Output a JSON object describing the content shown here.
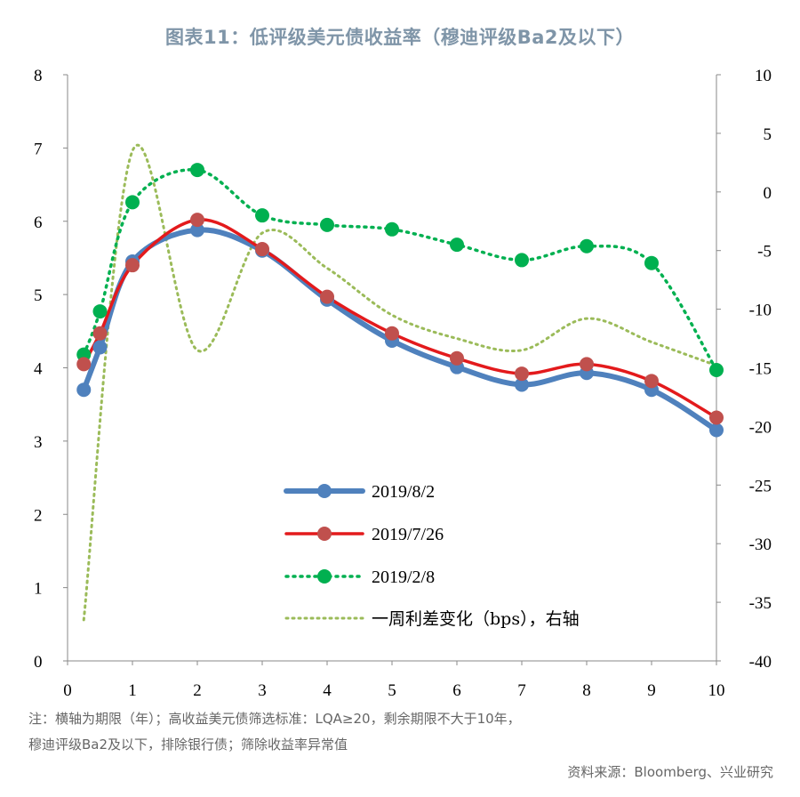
{
  "title": "图表11：低评级美元债收益率（穆迪评级Ba2及以下）",
  "footnote_line1": "注：横轴为期限（年）；高收益美元债筛选标准：LQA≥20，剩余期限不大于10年，",
  "footnote_line2": "穆迪评级Ba2及以下，排除银行债；筛除收益率异常值",
  "source": "资料来源：Bloomberg、兴业研究",
  "chart_data": {
    "type": "line",
    "x_ticks": [
      "0",
      "1",
      "2",
      "3",
      "4",
      "5",
      "6",
      "7",
      "8",
      "9",
      "10"
    ],
    "y_left_ticks": [
      "0",
      "1",
      "2",
      "3",
      "4",
      "5",
      "6",
      "7",
      "8"
    ],
    "y_right_ticks": [
      "-40",
      "-35",
      "-30",
      "-25",
      "-20",
      "-15",
      "-10",
      "-5",
      "0",
      "5",
      "10"
    ],
    "xlim": [
      0,
      10
    ],
    "ylim_left": [
      0,
      8
    ],
    "ylim_right": [
      -40,
      10
    ],
    "grid": false,
    "legend_position": "bottom-center",
    "series": [
      {
        "name": "2019/8/2",
        "axis": "left",
        "style": "solid-thick",
        "color": "#4f81bd",
        "marker_color": "#4f81bd",
        "x": [
          0.25,
          0.5,
          1,
          2,
          3,
          4,
          5,
          6,
          7,
          8,
          9,
          10
        ],
        "y": [
          3.7,
          4.28,
          5.45,
          5.88,
          5.6,
          4.93,
          4.37,
          4.01,
          3.77,
          3.93,
          3.7,
          3.15
        ]
      },
      {
        "name": "2019/7/26",
        "axis": "left",
        "style": "solid",
        "color": "#e31a1c",
        "marker_color": "#c0504d",
        "x": [
          0.25,
          0.5,
          1,
          2,
          3,
          4,
          5,
          6,
          7,
          8,
          9,
          10
        ],
        "y": [
          4.05,
          4.47,
          5.4,
          6.02,
          5.62,
          4.97,
          4.47,
          4.13,
          3.92,
          4.05,
          3.82,
          3.32
        ]
      },
      {
        "name": "2019/2/8",
        "axis": "left",
        "style": "dotted",
        "color": "#00b050",
        "marker_color": "#00b050",
        "x": [
          0.25,
          0.5,
          1,
          2,
          3,
          4,
          5,
          6,
          7,
          8,
          9,
          10
        ],
        "y": [
          4.18,
          4.77,
          6.26,
          6.7,
          6.08,
          5.95,
          5.89,
          5.68,
          5.47,
          5.66,
          5.43,
          3.97
        ]
      },
      {
        "name": "一周利差变化（bps），右轴",
        "axis": "right",
        "style": "dotted",
        "color": "#9bbb59",
        "x": [
          0.25,
          1,
          2,
          3,
          4,
          5,
          6,
          7,
          8,
          9,
          10
        ],
        "y": [
          -36.5,
          3.5,
          -13.5,
          -3.5,
          -6.5,
          -10.5,
          -12.5,
          -13.5,
          -10.8,
          -12.8,
          -14.8
        ]
      }
    ]
  }
}
